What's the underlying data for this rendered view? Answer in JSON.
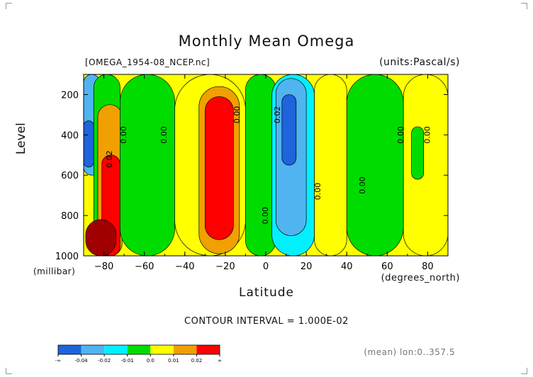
{
  "header": {
    "title": "Monthly Mean Omega",
    "file_label": "[OMEGA_1954-08_NCEP.nc]",
    "units_label": "(units:Pascal/s)"
  },
  "footer": {
    "contour_interval": "CONTOUR INTERVAL = 1.000E-02",
    "mean_label": "(mean) lon:0..357.5"
  },
  "chart_data": {
    "type": "heatmap",
    "title": "Monthly Mean Omega",
    "xlabel": "Latitude",
    "x_unit": "(degrees_north)",
    "ylabel": "Level",
    "y_unit": "(millibar)",
    "xlim": [
      -90,
      90
    ],
    "ylim": [
      1000,
      100
    ],
    "x_ticks": [
      -80,
      -60,
      -40,
      -20,
      0,
      20,
      40,
      60,
      80
    ],
    "x_tick_labels": [
      "−80",
      "−60",
      "−40",
      "−20",
      "0",
      "20",
      "40",
      "60",
      "80"
    ],
    "y_ticks": [
      200,
      400,
      600,
      800,
      1000
    ],
    "y_tick_labels": [
      "200",
      "400",
      "600",
      "800",
      "1000"
    ],
    "contour_interval": 0.01,
    "background_value": 0.005,
    "levels": [
      {
        "range": "< -0.04",
        "color": "#1e64dc"
      },
      {
        "range": "-0.04 to -0.03",
        "color": "#3296f0"
      },
      {
        "range": "-0.03 to -0.02",
        "color": "#50b4f0"
      },
      {
        "range": "-0.02 to -0.01",
        "color": "#00f0ff"
      },
      {
        "range": "-0.01 to 0.0",
        "color": "#00dc00"
      },
      {
        "range": "0.0 to 0.01",
        "color": "#ffff00"
      },
      {
        "range": "0.01 to 0.02",
        "color": "#f0a000"
      },
      {
        "range": "> 0.02",
        "color": "#ff0000"
      },
      {
        "range": "extreme positive",
        "color": "#a00000"
      }
    ],
    "colorbar_labels": [
      "-∞",
      "-0.04",
      "-0.02",
      "-0.01",
      "0.0",
      "0.01",
      "0.02",
      "∞"
    ],
    "regions": [
      {
        "lat": [
          -90,
          -82
        ],
        "lev": [
          100,
          600
        ],
        "value": -0.03
      },
      {
        "lat": [
          -90,
          -85
        ],
        "lev": [
          330,
          560
        ],
        "value": -0.045
      },
      {
        "lat": [
          -85,
          -72
        ],
        "lev": [
          100,
          1000
        ],
        "value": -0.005
      },
      {
        "lat": [
          -83,
          -71
        ],
        "lev": [
          250,
          1000
        ],
        "value": 0.015
      },
      {
        "lat": [
          -81,
          -72
        ],
        "lev": [
          500,
          1000
        ],
        "value": 0.03
      },
      {
        "lat": [
          -89,
          -74
        ],
        "lev": [
          820,
          1000
        ],
        "value": 0.06
      },
      {
        "lat": [
          -72,
          -45
        ],
        "lev": [
          100,
          1000
        ],
        "value": -0.005
      },
      {
        "lat": [
          -45,
          -10
        ],
        "lev": [
          100,
          1000
        ],
        "value": 0.005
      },
      {
        "lat": [
          -33,
          -13
        ],
        "lev": [
          160,
          990
        ],
        "value": 0.015
      },
      {
        "lat": [
          -30,
          -16
        ],
        "lev": [
          210,
          920
        ],
        "value": 0.03
      },
      {
        "lat": [
          -10,
          5
        ],
        "lev": [
          100,
          1000
        ],
        "value": -0.005
      },
      {
        "lat": [
          3,
          24
        ],
        "lev": [
          100,
          1000
        ],
        "value": -0.015
      },
      {
        "lat": [
          5,
          20
        ],
        "lev": [
          120,
          900
        ],
        "value": -0.025
      },
      {
        "lat": [
          8,
          15
        ],
        "lev": [
          200,
          550
        ],
        "value": -0.045
      },
      {
        "lat": [
          24,
          40
        ],
        "lev": [
          100,
          1000
        ],
        "value": 0.005
      },
      {
        "lat": [
          40,
          68
        ],
        "lev": [
          100,
          1000
        ],
        "value": -0.005
      },
      {
        "lat": [
          68,
          90
        ],
        "lev": [
          100,
          1000
        ],
        "value": 0.005
      },
      {
        "lat": [
          72,
          78
        ],
        "lev": [
          360,
          620
        ],
        "value": -0.005
      }
    ],
    "contour_labels": [
      {
        "text": "0.00",
        "lat": -69,
        "lev": 400
      },
      {
        "text": "0.02",
        "lat": -76,
        "lev": 520
      },
      {
        "text": "0.00",
        "lat": -49,
        "lev": 400
      },
      {
        "text": "0.00",
        "lat": -13,
        "lev": 300
      },
      {
        "text": "0.02",
        "lat": 7,
        "lev": 300
      },
      {
        "text": "0.00",
        "lat": 1,
        "lev": 800
      },
      {
        "text": "0.00",
        "lat": 27,
        "lev": 680
      },
      {
        "text": "0.00",
        "lat": 49,
        "lev": 650
      },
      {
        "text": "0.00",
        "lat": 68,
        "lev": 400
      },
      {
        "text": "0.00",
        "lat": 81,
        "lev": 400
      }
    ],
    "grid": false
  }
}
